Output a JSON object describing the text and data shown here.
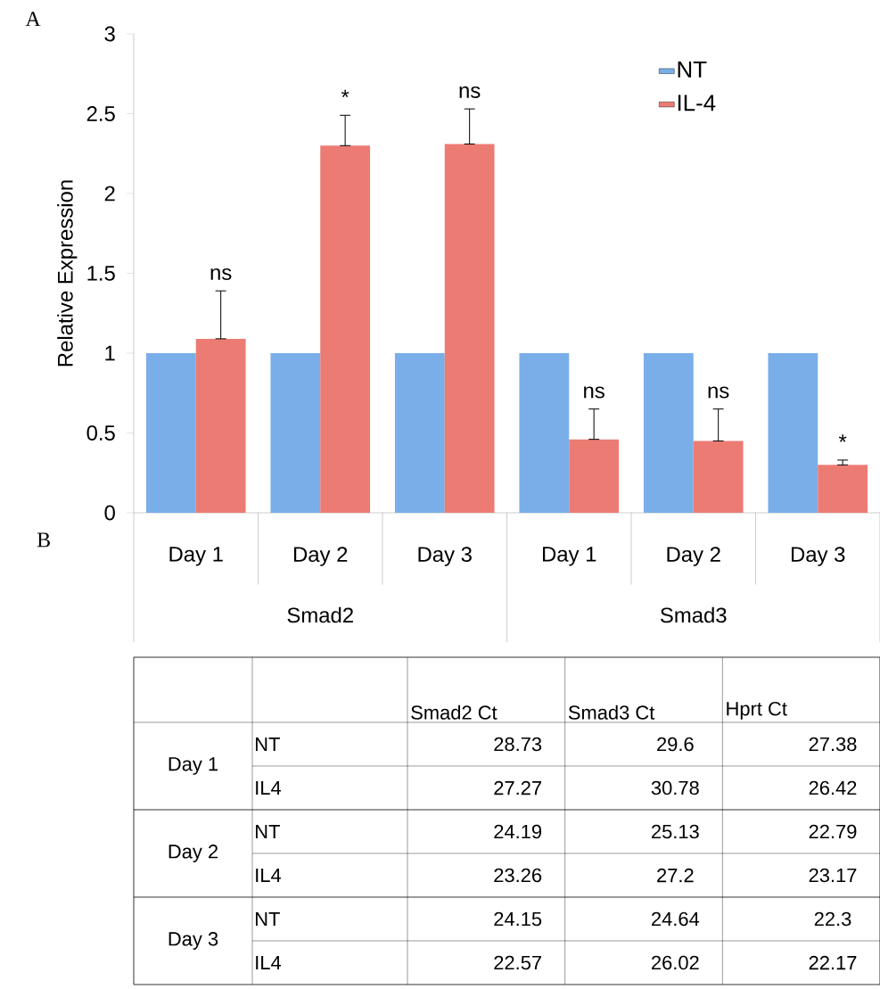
{
  "chart_data": [
    {
      "type": "bar",
      "title": "A",
      "ylabel": "Relative Expression",
      "categories": [
        "Day 1",
        "Day 2",
        "Day 3",
        "Day 1",
        "Day 2",
        "Day 3"
      ],
      "series": [
        {
          "name": "NT",
          "color": "#7aaee8",
          "values": [
            1,
            1,
            1,
            1,
            1,
            1
          ]
        },
        {
          "name": "IL-4",
          "color": "#ec7b74",
          "values": [
            1.09,
            2.3,
            2.31,
            0.46,
            0.45,
            0.3
          ],
          "errors": [
            [
              1.09,
              1.39
            ],
            [
              2.3,
              2.49
            ],
            [
              2.31,
              2.53
            ],
            [
              0.46,
              0.65
            ],
            [
              0.45,
              0.65
            ],
            [
              0.3,
              0.33
            ]
          ],
          "value_labels": [
            "ns",
            "*",
            "ns",
            "ns",
            "ns",
            "*"
          ]
        }
      ],
      "ylim": [
        0,
        3
      ],
      "yticks": [
        0,
        0.5,
        1,
        1.5,
        2,
        2.5,
        3
      ],
      "legend": "top right",
      "annotations": [
        "Smad2",
        "Smad3"
      ]
    },
    {
      "type": "heatmap",
      "title": "B",
      "categories": [
        "Smad2 Ct",
        "Smad3 Ct",
        "Hprt Ct"
      ],
      "y_categories": [
        "NT",
        "IL4",
        "NT",
        "IL4",
        "NT",
        "IL4"
      ],
      "y2_categories": [
        "Day 1",
        null,
        "Day 2",
        null,
        "Day 3",
        null
      ],
      "cells": [
        [
          28.73,
          29.6,
          27.38
        ],
        [
          27.27,
          30.78,
          26.42
        ],
        [
          24.19,
          25.13,
          22.79
        ],
        [
          23.26,
          27.2,
          23.17
        ],
        [
          24.15,
          24.64,
          22.3
        ],
        [
          22.57,
          26.02,
          22.17
        ]
      ],
      "data_labels": true
    }
  ]
}
